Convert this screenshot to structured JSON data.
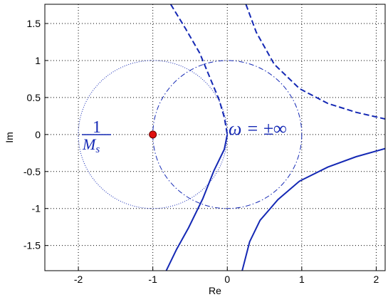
{
  "chart_data": {
    "type": "line",
    "xlabel": "Re",
    "ylabel": "Im",
    "xlim": [
      -2.45,
      2.12
    ],
    "ylim": [
      -1.84,
      1.76
    ],
    "xticks": [
      -2,
      -1,
      0,
      1,
      2
    ],
    "yticks": [
      -1.5,
      -1,
      -0.5,
      0,
      0.5,
      1,
      1.5
    ],
    "grid": true,
    "series": [
      {
        "color": "#1428b4",
        "style": "dashed",
        "x": [
          -0.76,
          -0.56,
          -0.37,
          -0.23,
          -0.11,
          -0.04,
          0
        ],
        "values": [
          1.76,
          1.43,
          1.1,
          0.76,
          0.47,
          0.23,
          0
        ]
      },
      {
        "color": "#1428b4",
        "style": "solid",
        "x": [
          0,
          -0.04,
          -0.18,
          -0.33,
          -0.52,
          -0.68,
          -0.82
        ],
        "values": [
          0,
          -0.2,
          -0.49,
          -0.87,
          -1.26,
          -1.55,
          -1.84
        ]
      },
      {
        "color": "#1428b4",
        "style": "solid",
        "x": [
          0.2,
          0.3,
          0.44,
          0.68,
          0.97,
          1.35,
          1.73,
          2.12
        ],
        "values": [
          -1.84,
          -1.45,
          -1.16,
          -0.88,
          -0.63,
          -0.44,
          -0.3,
          -0.19
        ]
      },
      {
        "color": "#1428b4",
        "style": "dashed",
        "x": [
          0.25,
          0.39,
          0.63,
          0.97,
          1.35,
          1.73,
          2.12
        ],
        "values": [
          1.76,
          1.38,
          0.95,
          0.62,
          0.42,
          0.3,
          0.21
        ]
      }
    ],
    "circles": [
      {
        "cx": 0,
        "cy": 0,
        "r": 1,
        "color": "#1428b4",
        "style": "dashdot"
      },
      {
        "cx": -1,
        "cy": 0,
        "r": 1,
        "color": "#1428b4",
        "style": "dotted"
      }
    ],
    "points": [
      {
        "x": -1,
        "y": 0,
        "color": "#e01010"
      }
    ],
    "annotations": {
      "numerator": "1",
      "denominator": "M",
      "denominator_subscript": "s",
      "infinity": "ω = ±∞"
    }
  }
}
